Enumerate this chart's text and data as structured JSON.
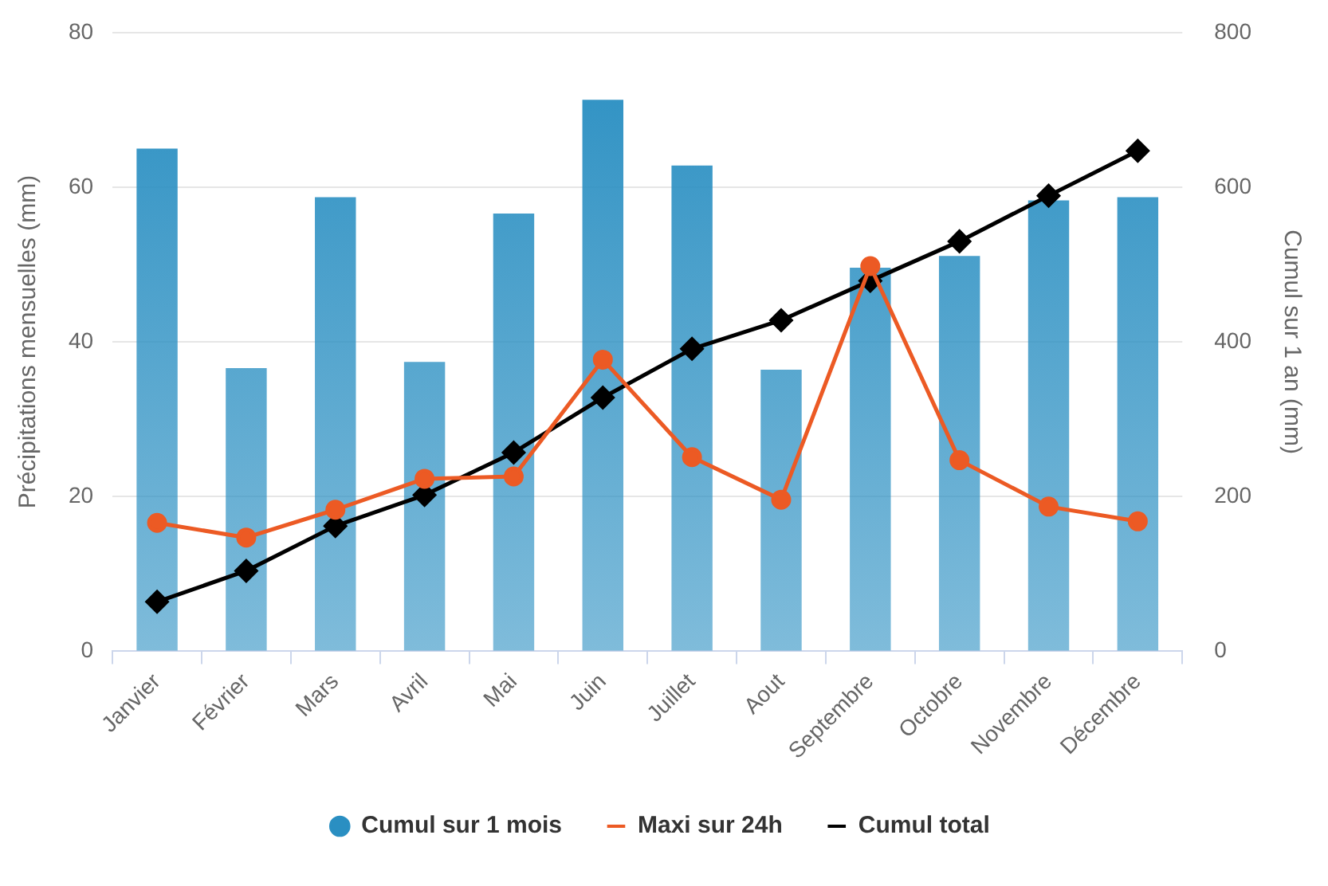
{
  "chart_data": {
    "type": "bar",
    "categories": [
      "Janvier",
      "Février",
      "Mars",
      "Avril",
      "Mai",
      "Juin",
      "Juillet",
      "Aout",
      "Septembre",
      "Octobre",
      "Novembre",
      "Décembre"
    ],
    "ylabel": "Précipitations mensuelles (mm)",
    "y2label": "Cumul sur 1 an (mm)",
    "ylim": [
      0,
      80
    ],
    "yticks": [
      0,
      20,
      40,
      60,
      80
    ],
    "y2lim": [
      0,
      800
    ],
    "y2ticks": [
      0,
      200,
      400,
      600,
      800
    ],
    "grid": "y",
    "legend": "bottom",
    "series": [
      {
        "name": "Cumul sur 1 mois",
        "color": "#2a8fc2",
        "values": [
          65,
          36.6,
          58.7,
          37.4,
          56.6,
          71.3,
          62.8,
          36.4,
          49.6,
          51.1,
          58.3,
          58.7
        ]
      },
      {
        "name": "Maxi sur 24h",
        "type": "line",
        "color": "#ec5a24",
        "marker": "circle",
        "values": [
          16.6,
          14.7,
          18.3,
          22.3,
          22.6,
          37.7,
          25.1,
          19.6,
          49.8,
          24.7,
          18.7,
          16.8
        ]
      },
      {
        "name": "Cumul total",
        "type": "line",
        "axis": "y2",
        "color": "#000000",
        "marker": "diamond",
        "values": [
          64,
          104,
          162,
          202,
          257,
          328,
          391,
          428,
          479,
          530,
          589,
          647
        ]
      }
    ]
  }
}
